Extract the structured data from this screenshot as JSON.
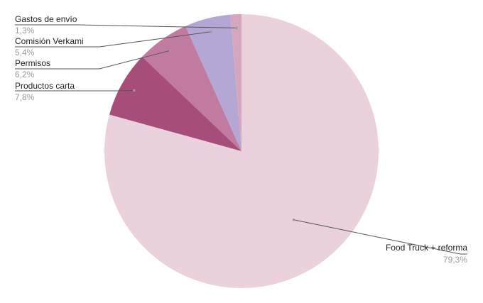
{
  "chart_data": {
    "type": "pie",
    "title": "",
    "slices": [
      {
        "label": "Food Truck + reforma",
        "value": 79.3,
        "display": "79,3%",
        "color": "#ead1dc"
      },
      {
        "label": "Productos carta",
        "value": 7.8,
        "display": "7,8%",
        "color": "#a64d79"
      },
      {
        "label": "Permisos",
        "value": 6.2,
        "display": "6,2%",
        "color": "#c27ba0"
      },
      {
        "label": "Comisión Verkami",
        "value": 5.4,
        "display": "5,4%",
        "color": "#b4a7d6"
      },
      {
        "label": "Gastos de envío",
        "value": 1.3,
        "display": "1,3%",
        "color": "#d5a6bd"
      }
    ]
  }
}
